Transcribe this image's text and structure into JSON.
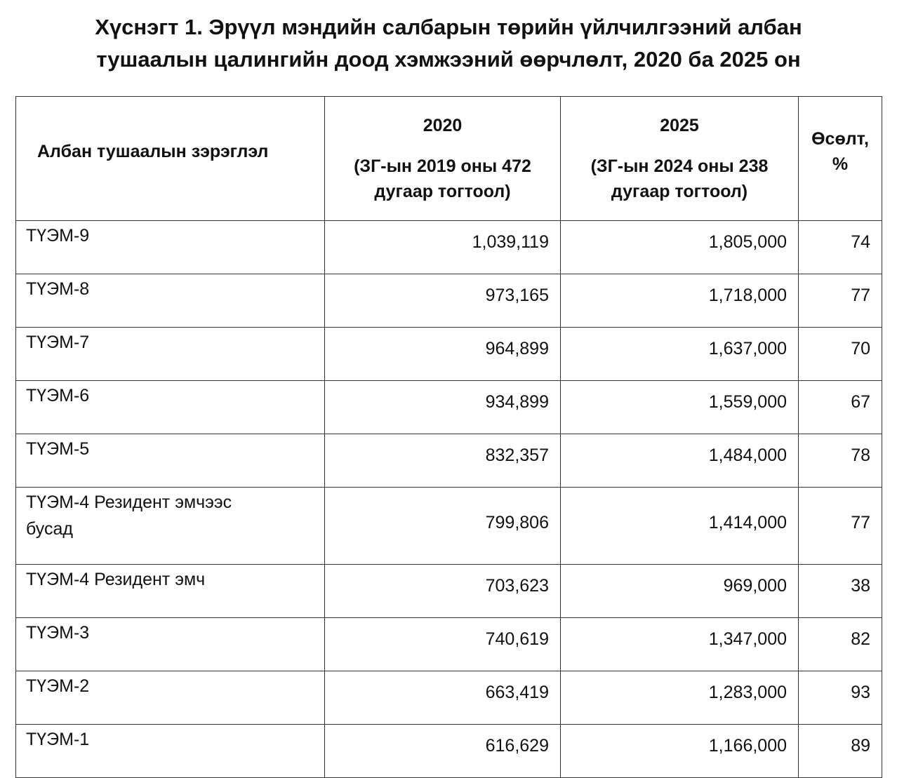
{
  "title": {
    "lines": [
      "Хүснэгт 1. Эрүүл мэндийн салбарын төрийн үйлчилгээний албан",
      "тушаалын цалингийн доод хэмжээний өөрчлөлт, 2020 ба 2025 он"
    ]
  },
  "table": {
    "header": {
      "category": "Албан тушаалын зэрэглэл",
      "col_2020": {
        "year": "2020",
        "note": "(ЗГ-ын 2019 оны 472 дугаар тогтоол)"
      },
      "col_2025": {
        "year": "2025",
        "note": "(ЗГ-ын 2024 оны 238 дугаар тогтоол)"
      },
      "growth": "Өсөлт, %"
    },
    "rows": [
      [
        "ТҮЭМ-9",
        "1,039,119",
        "1,805,000",
        "74"
      ],
      [
        "ТҮЭМ-8",
        "973,165",
        "1,718,000",
        "77"
      ],
      [
        "ТҮЭМ-7",
        "964,899",
        "1,637,000",
        "70"
      ],
      [
        "ТҮЭМ-6",
        "934,899",
        "1,559,000",
        "67"
      ],
      [
        "ТҮЭМ-5",
        "832,357",
        "1,484,000",
        "78"
      ],
      [
        "ТҮЭМ-4 Резидент эмчээс бусад",
        "799,806",
        "1,414,000",
        "77"
      ],
      [
        "ТҮЭМ-4 Резидент эмч",
        "703,623",
        "969,000",
        "38"
      ],
      [
        "ТҮЭМ-3",
        "740,619",
        "1,347,000",
        "82"
      ],
      [
        "ТҮЭМ-2",
        "663,419",
        "1,283,000",
        "93"
      ],
      [
        "ТҮЭМ-1",
        "616,629",
        "1,166,000",
        "89"
      ]
    ]
  }
}
